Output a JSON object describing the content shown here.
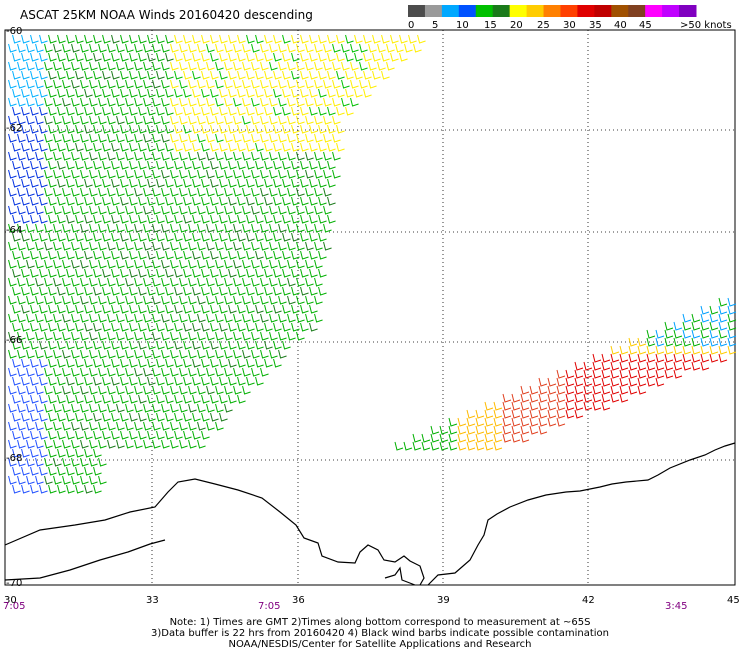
{
  "title": "ASCAT 25KM NOAA Winds 20160420 descending",
  "legend": {
    "labels": [
      "0",
      "5",
      "10",
      "15",
      "20",
      "25",
      "30",
      "35",
      "40",
      "45",
      ">50 knots"
    ],
    "colors": [
      "#4c4c4c",
      "#9a9a9a",
      "#00a8ff",
      "#0052ff",
      "#00c000",
      "#1a7a1a",
      "#ffff00",
      "#ffcc00",
      "#ff8000",
      "#ff4000",
      "#e00000",
      "#c00000",
      "#a05000",
      "#804020",
      "#ff00ff",
      "#c000ff",
      "#8000c0"
    ]
  },
  "latitudes": [
    "-60",
    "-62",
    "-64",
    "-66",
    "-68",
    "-70"
  ],
  "longitudes": [
    "30",
    "33",
    "36",
    "39",
    "42",
    "45"
  ],
  "times": [
    "7:05",
    "7:05",
    "3:45"
  ],
  "notes": [
    "Note: 1) Times are GMT 2)Times along bottom correspond to measurement at ~65S",
    "3)Data buffer is 22 hrs from 20160420 4) Black wind barbs indicate possible contamination",
    "NOAA/NESDIS/Center for Satellite Applications and Research"
  ]
}
